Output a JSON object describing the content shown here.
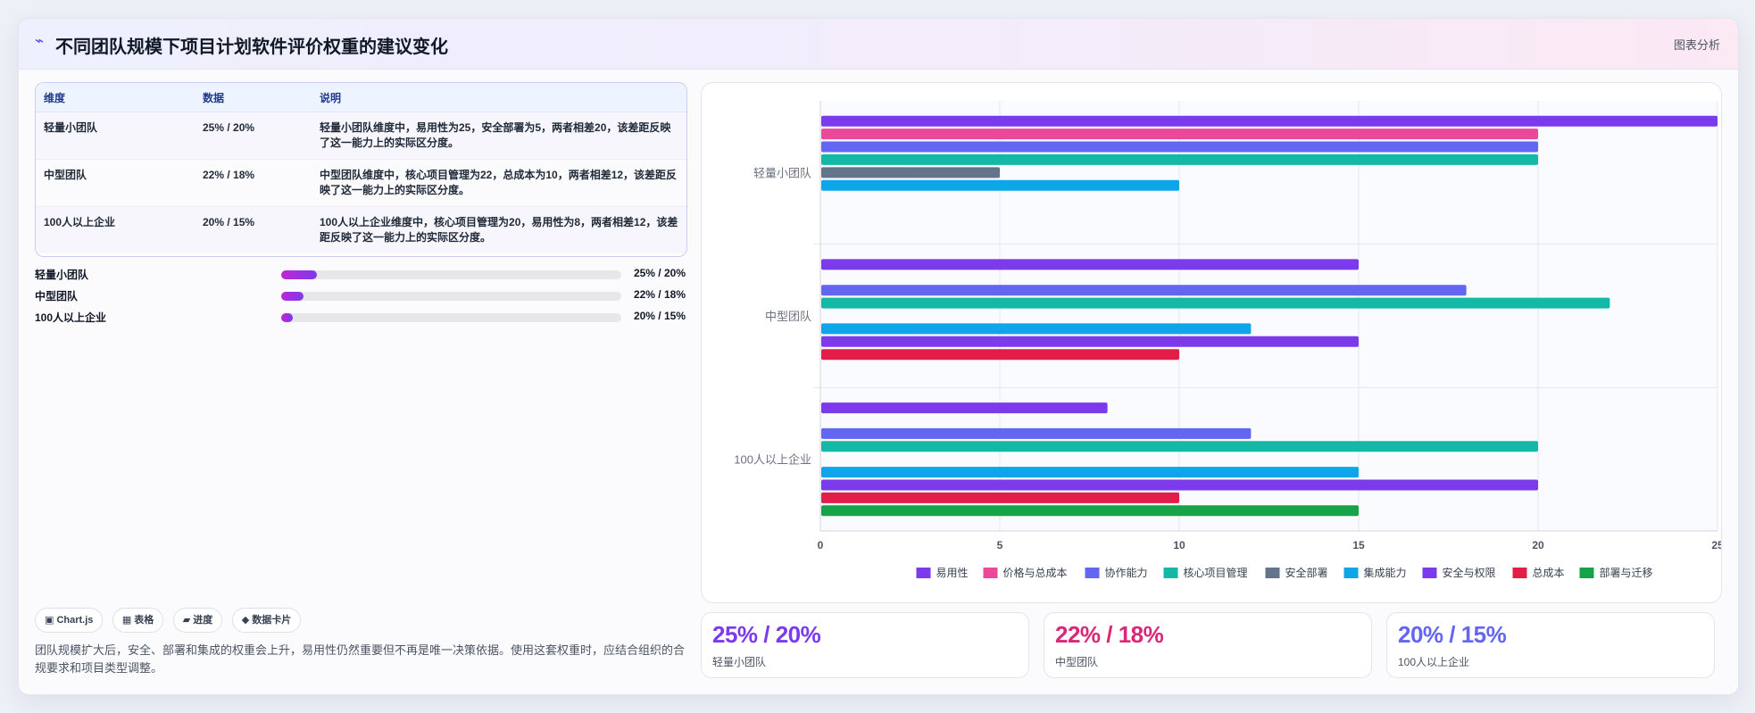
{
  "header": {
    "icon": "trend-icon",
    "title": "不同团队规模下项目计划软件评价权重的建议变化",
    "tag": "图表分析"
  },
  "table": {
    "columns": [
      "维度",
      "数据",
      "说明"
    ],
    "rows": [
      {
        "dim": "轻量小团队",
        "data": "25% / 20%",
        "desc": "轻量小团队维度中，易用性为25，安全部署为5，两者相差20，该差距反映了这一能力上的实际区分度。"
      },
      {
        "dim": "中型团队",
        "data": "22% / 18%",
        "desc": "中型团队维度中，核心项目管理为22，总成本为10，两者相差12，该差距反映了这一能力上的实际区分度。"
      },
      {
        "dim": "100人以上企业",
        "data": "20% / 15%",
        "desc": "100人以上企业维度中，核心项目管理为20，易用性为8，两者相差12，该差距反映了这一能力上的实际区分度。"
      }
    ]
  },
  "progress": [
    {
      "label": "轻量小团队",
      "value": "25% / 20%",
      "fill": 0.105
    },
    {
      "label": "中型团队",
      "value": "22% / 18%",
      "fill": 0.065
    },
    {
      "label": "100人以上企业",
      "value": "20% / 15%",
      "fill": 0.035
    }
  ],
  "chips": [
    "▣ Chart.js",
    "▦ 表格",
    "▰ 进度",
    "◆ 数据卡片"
  ],
  "note": "团队规模扩大后，安全、部署和集成的权重会上升，易用性仍然重要但不再是唯一决策依据。使用这套权重时，应结合组织的合规要求和项目类型调整。",
  "stats": [
    {
      "big": "25% / 20%",
      "small": "轻量小团队",
      "color": "#7c3aed"
    },
    {
      "big": "22% / 18%",
      "small": "中型团队",
      "color": "#db2777"
    },
    {
      "big": "20% / 15%",
      "small": "100人以上企业",
      "color": "#6366f1"
    }
  ],
  "chart_data": {
    "type": "bar",
    "orientation": "horizontal",
    "categories": [
      "轻量小团队",
      "中型团队",
      "100人以上企业"
    ],
    "xlim": [
      0,
      25
    ],
    "xticks": [
      0,
      5,
      10,
      15,
      20,
      25
    ],
    "grid": true,
    "legend_position": "bottom",
    "series": [
      {
        "name": "易用性",
        "color": "#7c3aed",
        "values": [
          25,
          15,
          8
        ]
      },
      {
        "name": "价格与总成本",
        "color": "#ec4899",
        "values": [
          20,
          null,
          null
        ]
      },
      {
        "name": "协作能力",
        "color": "#6366f1",
        "values": [
          20,
          18,
          12
        ]
      },
      {
        "name": "核心项目管理",
        "color": "#14b8a6",
        "values": [
          20,
          22,
          20
        ]
      },
      {
        "name": "安全部署",
        "color": "#64748b",
        "values": [
          5,
          null,
          null
        ]
      },
      {
        "name": "集成能力",
        "color": "#0ea5e9",
        "values": [
          10,
          12,
          15
        ]
      },
      {
        "name": "安全与权限",
        "color": "#7c3aed",
        "values": [
          null,
          15,
          20
        ]
      },
      {
        "name": "总成本",
        "color": "#e11d48",
        "values": [
          null,
          10,
          10
        ]
      },
      {
        "name": "部署与迁移",
        "color": "#16a34a",
        "values": [
          null,
          null,
          15
        ]
      }
    ]
  }
}
